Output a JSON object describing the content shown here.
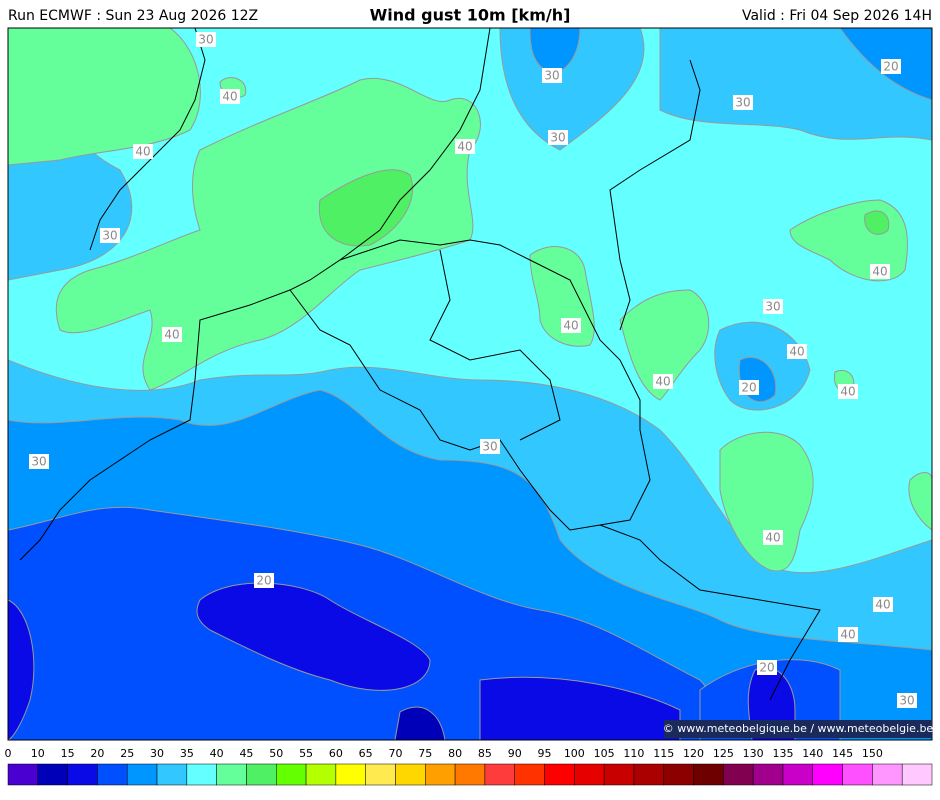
{
  "header": {
    "left": "Run ECMWF : Sun 23 Aug 2026 12Z",
    "title": "Wind gust 10m [km/h]",
    "right": "Valid : Fri 04 Sep 2026 14H"
  },
  "contour_labels": [
    30,
    40,
    30,
    30,
    30,
    20,
    40,
    40,
    30,
    40,
    30,
    40,
    40,
    40,
    40,
    20,
    40,
    30,
    30,
    40,
    20,
    40,
    40,
    20,
    30
  ],
  "colorbar": {
    "labels": [
      0,
      10,
      15,
      20,
      25,
      30,
      35,
      40,
      45,
      50,
      55,
      60,
      65,
      70,
      75,
      80,
      85,
      90,
      95,
      100,
      105,
      110,
      115,
      120,
      125,
      130,
      135,
      140,
      145,
      150
    ],
    "colors": [
      "#4a00d0",
      "#0000b8",
      "#0a0ae6",
      "#0050ff",
      "#0096ff",
      "#32c8ff",
      "#64ffff",
      "#64ff9b",
      "#50f064",
      "#64ff00",
      "#b4ff00",
      "#ffff00",
      "#ffeb50",
      "#ffd700",
      "#ffa000",
      "#ff7800",
      "#ff3c3c",
      "#ff3200",
      "#ff0000",
      "#e60000",
      "#c80000",
      "#aa0000",
      "#8c0000",
      "#6e0000",
      "#820050",
      "#a0008c",
      "#c800c8",
      "#ff00ff",
      "#ff50ff",
      "#ff96ff",
      "#ffc8ff"
    ]
  },
  "copyright": "© www.meteobelgique.be / www.meteobelgie.be"
}
